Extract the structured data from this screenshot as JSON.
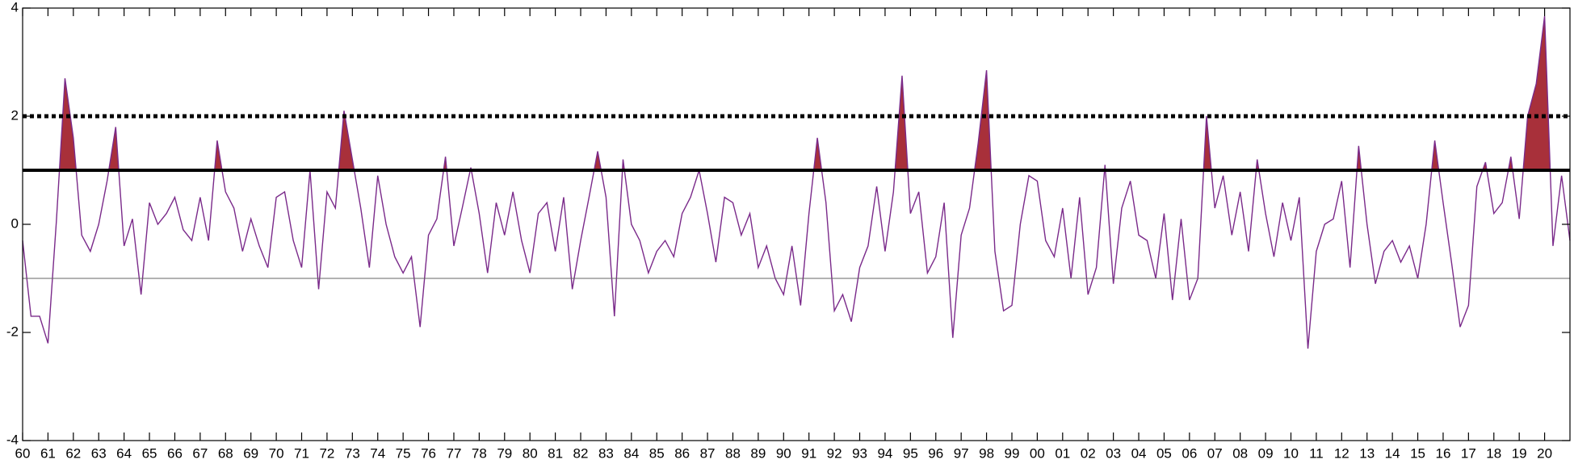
{
  "chart_data": {
    "type": "line",
    "x": [
      1960.0,
      1960.33,
      1960.67,
      1961.0,
      1961.33,
      1961.67,
      1962.0,
      1962.33,
      1962.67,
      1963.0,
      1963.33,
      1963.67,
      1964.0,
      1964.33,
      1964.67,
      1965.0,
      1965.33,
      1965.67,
      1966.0,
      1966.33,
      1966.67,
      1967.0,
      1967.33,
      1967.67,
      1968.0,
      1968.33,
      1968.67,
      1969.0,
      1969.33,
      1969.67,
      1970.0,
      1970.33,
      1970.67,
      1971.0,
      1971.33,
      1971.67,
      1972.0,
      1972.33,
      1972.67,
      1973.0,
      1973.33,
      1973.67,
      1974.0,
      1974.33,
      1974.67,
      1975.0,
      1975.33,
      1975.67,
      1976.0,
      1976.33,
      1976.67,
      1977.0,
      1977.33,
      1977.67,
      1978.0,
      1978.33,
      1978.67,
      1979.0,
      1979.33,
      1979.67,
      1980.0,
      1980.33,
      1980.67,
      1981.0,
      1981.33,
      1981.67,
      1982.0,
      1982.33,
      1982.67,
      1983.0,
      1983.33,
      1983.67,
      1984.0,
      1984.33,
      1984.67,
      1985.0,
      1985.33,
      1985.67,
      1986.0,
      1986.33,
      1986.67,
      1987.0,
      1987.33,
      1987.67,
      1988.0,
      1988.33,
      1988.67,
      1989.0,
      1989.33,
      1989.67,
      1990.0,
      1990.33,
      1990.67,
      1991.0,
      1991.33,
      1991.67,
      1992.0,
      1992.33,
      1992.67,
      1993.0,
      1993.33,
      1993.67,
      1994.0,
      1994.33,
      1994.67,
      1995.0,
      1995.33,
      1995.67,
      1996.0,
      1996.33,
      1996.67,
      1997.0,
      1997.33,
      1997.67,
      1998.0,
      1998.33,
      1998.67,
      1999.0,
      1999.33,
      1999.67,
      2000.0,
      2000.33,
      2000.67,
      2001.0,
      2001.33,
      2001.67,
      2002.0,
      2002.33,
      2002.67,
      2003.0,
      2003.33,
      2003.67,
      2004.0,
      2004.33,
      2004.67,
      2005.0,
      2005.33,
      2005.67,
      2006.0,
      2006.33,
      2006.67,
      2007.0,
      2007.33,
      2007.67,
      2008.0,
      2008.33,
      2008.67,
      2009.0,
      2009.33,
      2009.67,
      2010.0,
      2010.33,
      2010.67,
      2011.0,
      2011.33,
      2011.67,
      2012.0,
      2012.33,
      2012.67,
      2013.0,
      2013.33,
      2013.67,
      2014.0,
      2014.33,
      2014.67,
      2015.0,
      2015.33,
      2015.67,
      2016.0,
      2016.33,
      2016.67,
      2017.0,
      2017.33,
      2017.67,
      2018.0,
      2018.33,
      2018.67,
      2019.0,
      2019.33,
      2019.67,
      2020.0,
      2020.33,
      2020.67,
      2021.0
    ],
    "series": [
      {
        "color": "#7a2a8a",
        "values": [
          -0.3,
          -1.7,
          -1.7,
          -2.2,
          0.05,
          2.7,
          1.6,
          -0.2,
          -0.5,
          0.0,
          0.8,
          1.8,
          -0.4,
          0.1,
          -1.3,
          0.4,
          0.0,
          0.2,
          0.5,
          -0.1,
          -0.3,
          0.5,
          -0.3,
          1.55,
          0.6,
          0.3,
          -0.5,
          0.1,
          -0.4,
          -0.8,
          0.5,
          0.6,
          -0.3,
          -0.8,
          1.0,
          -1.2,
          0.6,
          0.3,
          2.1,
          1.2,
          0.3,
          -0.8,
          0.9,
          0.0,
          -0.6,
          -0.9,
          -0.6,
          -1.9,
          -0.2,
          0.1,
          1.25,
          -0.4,
          0.3,
          1.05,
          0.2,
          -0.9,
          0.4,
          -0.2,
          0.6,
          -0.3,
          -0.9,
          0.2,
          0.4,
          -0.5,
          0.5,
          -1.2,
          -0.3,
          0.5,
          1.35,
          0.5,
          -1.7,
          1.2,
          0.0,
          -0.3,
          -0.9,
          -0.5,
          -0.3,
          -0.6,
          0.2,
          0.5,
          1.0,
          0.2,
          -0.7,
          0.5,
          0.4,
          -0.2,
          0.2,
          -0.8,
          -0.4,
          -1.0,
          -1.3,
          -0.4,
          -1.5,
          0.2,
          1.6,
          0.4,
          -1.6,
          -1.3,
          -1.8,
          -0.8,
          -0.4,
          0.7,
          -0.5,
          0.6,
          2.75,
          0.2,
          0.6,
          -0.9,
          -0.6,
          0.4,
          -2.1,
          -0.2,
          0.3,
          1.5,
          2.85,
          -0.5,
          -1.6,
          -1.5,
          0.0,
          0.9,
          0.8,
          -0.3,
          -0.6,
          0.3,
          -1.0,
          0.5,
          -1.3,
          -0.8,
          1.1,
          -1.1,
          0.3,
          0.8,
          -0.2,
          -0.3,
          -1.0,
          0.2,
          -1.4,
          0.1,
          -1.4,
          -1.0,
          2.0,
          0.3,
          0.9,
          -0.2,
          0.6,
          -0.5,
          1.2,
          0.2,
          -0.6,
          0.4,
          -0.3,
          0.5,
          -2.3,
          -0.5,
          0.0,
          0.1,
          0.8,
          -0.8,
          1.45,
          0.0,
          -1.1,
          -0.5,
          -0.3,
          -0.7,
          -0.4,
          -1.0,
          0.0,
          1.55,
          0.4,
          -0.7,
          -1.9,
          -1.5,
          0.7,
          1.15,
          0.2,
          0.4,
          1.25,
          0.1,
          2.0,
          2.6,
          3.85,
          -0.4,
          0.9,
          -0.3
        ]
      }
    ],
    "xlim": [
      1960,
      2021
    ],
    "ylim": [
      -4,
      4
    ],
    "yticks": [
      -4,
      -2,
      0,
      2,
      4
    ],
    "xticks": [
      {
        "value": 1960,
        "label": "60"
      },
      {
        "value": 1961,
        "label": "61"
      },
      {
        "value": 1962,
        "label": "62"
      },
      {
        "value": 1963,
        "label": "63"
      },
      {
        "value": 1964,
        "label": "64"
      },
      {
        "value": 1965,
        "label": "65"
      },
      {
        "value": 1966,
        "label": "66"
      },
      {
        "value": 1967,
        "label": "67"
      },
      {
        "value": 1968,
        "label": "68"
      },
      {
        "value": 1969,
        "label": "69"
      },
      {
        "value": 1970,
        "label": "70"
      },
      {
        "value": 1971,
        "label": "71"
      },
      {
        "value": 1972,
        "label": "72"
      },
      {
        "value": 1973,
        "label": "73"
      },
      {
        "value": 1974,
        "label": "74"
      },
      {
        "value": 1975,
        "label": "75"
      },
      {
        "value": 1976,
        "label": "76"
      },
      {
        "value": 1977,
        "label": "77"
      },
      {
        "value": 1978,
        "label": "78"
      },
      {
        "value": 1979,
        "label": "79"
      },
      {
        "value": 1980,
        "label": "80"
      },
      {
        "value": 1981,
        "label": "81"
      },
      {
        "value": 1982,
        "label": "82"
      },
      {
        "value": 1983,
        "label": "83"
      },
      {
        "value": 1984,
        "label": "84"
      },
      {
        "value": 1985,
        "label": "85"
      },
      {
        "value": 1986,
        "label": "86"
      },
      {
        "value": 1987,
        "label": "87"
      },
      {
        "value": 1988,
        "label": "88"
      },
      {
        "value": 1989,
        "label": "89"
      },
      {
        "value": 1990,
        "label": "90"
      },
      {
        "value": 1991,
        "label": "91"
      },
      {
        "value": 1992,
        "label": "92"
      },
      {
        "value": 1993,
        "label": "93"
      },
      {
        "value": 1994,
        "label": "94"
      },
      {
        "value": 1995,
        "label": "95"
      },
      {
        "value": 1996,
        "label": "96"
      },
      {
        "value": 1997,
        "label": "97"
      },
      {
        "value": 1998,
        "label": "98"
      },
      {
        "value": 1999,
        "label": "99"
      },
      {
        "value": 2000,
        "label": "00"
      },
      {
        "value": 2001,
        "label": "01"
      },
      {
        "value": 2002,
        "label": "02"
      },
      {
        "value": 2003,
        "label": "03"
      },
      {
        "value": 2004,
        "label": "04"
      },
      {
        "value": 2005,
        "label": "05"
      },
      {
        "value": 2006,
        "label": "06"
      },
      {
        "value": 2007,
        "label": "07"
      },
      {
        "value": 2008,
        "label": "08"
      },
      {
        "value": 2009,
        "label": "09"
      },
      {
        "value": 2010,
        "label": "10"
      },
      {
        "value": 2011,
        "label": "11"
      },
      {
        "value": 2012,
        "label": "12"
      },
      {
        "value": 2013,
        "label": "13"
      },
      {
        "value": 2014,
        "label": "14"
      },
      {
        "value": 2015,
        "label": "15"
      },
      {
        "value": 2016,
        "label": "16"
      },
      {
        "value": 2017,
        "label": "17"
      },
      {
        "value": 2018,
        "label": "18"
      },
      {
        "value": 2019,
        "label": "19"
      },
      {
        "value": 2020,
        "label": "20"
      }
    ],
    "reference_lines": [
      {
        "value": 2,
        "style": "dotted"
      },
      {
        "value": 1,
        "style": "solid",
        "fill_above": "#a8303a"
      },
      {
        "value": -1,
        "style": "thin"
      }
    ]
  }
}
